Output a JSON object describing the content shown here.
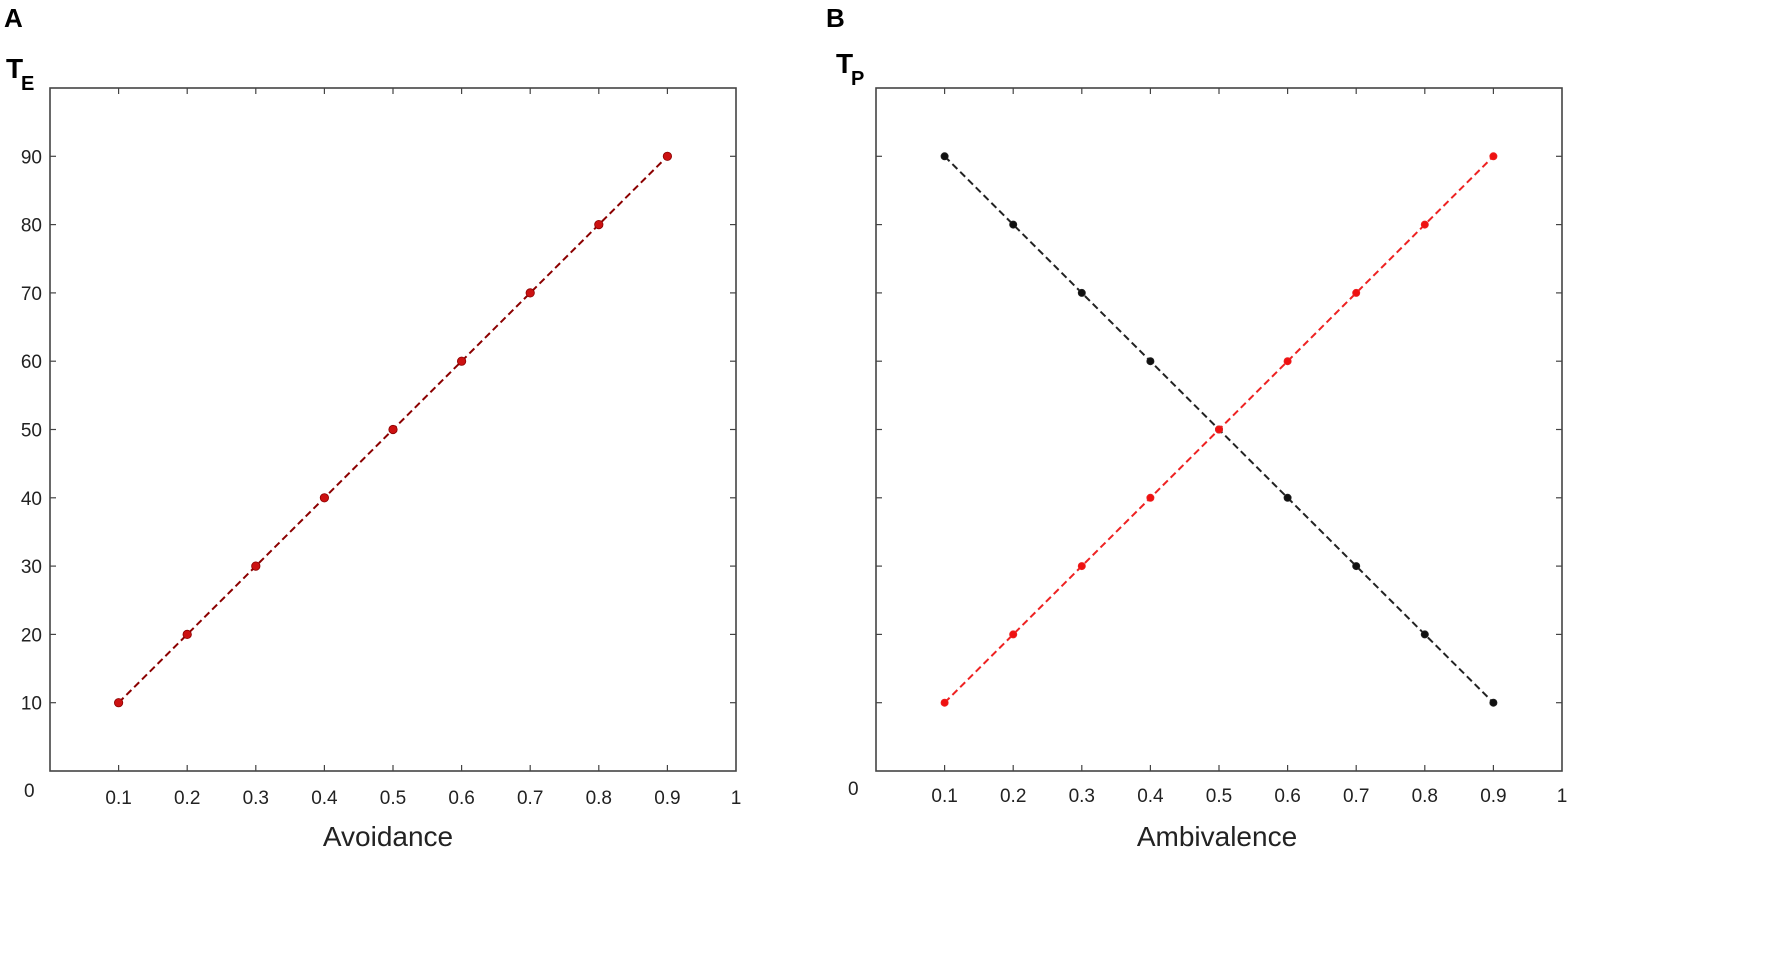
{
  "chart_data": [
    {
      "type": "line",
      "panel": "A",
      "ylabel_main": "T",
      "ylabel_sub": "E",
      "xlabel": "Avoidance",
      "xlim": [
        0,
        1
      ],
      "ylim": [
        0,
        100
      ],
      "x_ticks": [
        "0.1",
        "0.2",
        "0.3",
        "0.4",
        "0.5",
        "0.6",
        "0.7",
        "0.8",
        "0.9",
        "1"
      ],
      "y_ticks": [
        "10",
        "20",
        "30",
        "40",
        "50",
        "60",
        "70",
        "80",
        "90"
      ],
      "origin_label": "0",
      "grid": false,
      "series": [
        {
          "color": "#8b0000",
          "line_style": "dashed",
          "marker_color": "#cc1111",
          "x": [
            0.1,
            0.2,
            0.3,
            0.4,
            0.5,
            0.6,
            0.7,
            0.8,
            0.9
          ],
          "y": [
            10,
            20,
            30,
            40,
            50,
            60,
            70,
            80,
            90
          ]
        }
      ]
    },
    {
      "type": "line",
      "panel": "B",
      "ylabel_main": "T",
      "ylabel_sub": "P",
      "xlabel": "Ambivalence",
      "xlim": [
        0,
        1
      ],
      "ylim": [
        0,
        100
      ],
      "x_ticks": [
        "0.1",
        "0.2",
        "0.3",
        "0.4",
        "0.5",
        "0.6",
        "0.7",
        "0.8",
        "0.9",
        "1"
      ],
      "y_ticks": [],
      "origin_label": "0",
      "grid": false,
      "series": [
        {
          "color": "#222222",
          "line_style": "dashed",
          "marker_color": "#111111",
          "x": [
            0.1,
            0.2,
            0.3,
            0.4,
            0.5,
            0.6,
            0.7,
            0.8,
            0.9
          ],
          "y": [
            90,
            80,
            70,
            60,
            50,
            40,
            30,
            20,
            10
          ]
        },
        {
          "color": "#ee2222",
          "line_style": "dashed",
          "marker_color": "#ee1111",
          "x": [
            0.1,
            0.2,
            0.3,
            0.4,
            0.5,
            0.6,
            0.7,
            0.8,
            0.9
          ],
          "y": [
            10,
            20,
            30,
            40,
            50,
            60,
            70,
            80,
            90
          ]
        }
      ]
    }
  ]
}
